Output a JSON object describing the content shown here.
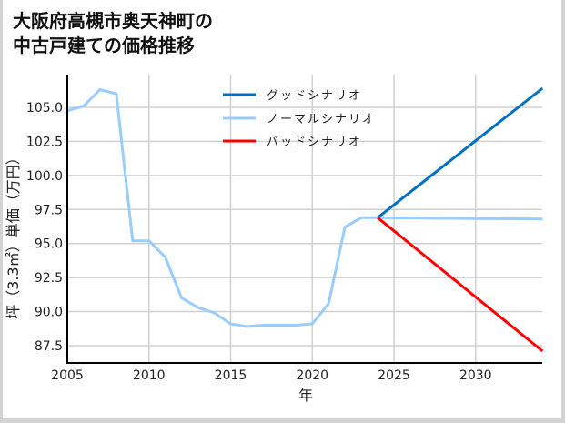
{
  "title": {
    "line1": "大阪府高槻市奥天神町の",
    "line2": "中古戸建ての価格推移"
  },
  "chart_data": {
    "type": "line",
    "title": "大阪府高槻市奥天神町の中古戸建ての価格推移",
    "xlabel": "年",
    "ylabel": "坪（3.3㎡）単価（万円）",
    "xlim": [
      2005,
      2034.1
    ],
    "ylim": [
      86.3,
      107.4
    ],
    "xticks": [
      2005,
      2010,
      2015,
      2020,
      2025,
      2030
    ],
    "xtick_labels": [
      "2005",
      "2010",
      "2015",
      "2020",
      "2025",
      "2030"
    ],
    "yticks": [
      87.5,
      90.0,
      92.5,
      95.0,
      97.5,
      100.0,
      102.5,
      105.0
    ],
    "ytick_labels": [
      "87.5",
      "90.0",
      "92.5",
      "95.0",
      "97.5",
      "100.0",
      "102.5",
      "105.0"
    ],
    "grid": true,
    "legend_position": "upper center",
    "series": [
      {
        "name": "グッドシナリオ",
        "color": "#0070c0",
        "x": [
          2024,
          2034.1
        ],
        "values": [
          96.9,
          106.4
        ]
      },
      {
        "name": "ノーマルシナリオ",
        "color": "#99ccff",
        "x": [
          2005,
          2006,
          2007,
          2008,
          2009,
          2010,
          2011,
          2012,
          2013,
          2014,
          2015,
          2016,
          2017,
          2018,
          2019,
          2020,
          2021,
          2022,
          2023,
          2024,
          2034.1
        ],
        "values": [
          104.75,
          105.1,
          106.3,
          106.0,
          95.2,
          95.2,
          94.0,
          91.0,
          90.3,
          89.9,
          89.1,
          88.9,
          89.0,
          89.0,
          89.0,
          89.1,
          90.6,
          96.2,
          96.9,
          96.9,
          96.8
        ]
      },
      {
        "name": "バッドシナリオ",
        "color": "#ff0000",
        "x": [
          2024,
          2034.1
        ],
        "values": [
          96.9,
          87.1
        ]
      }
    ]
  },
  "legend": {
    "good": "グッドシナリオ",
    "normal": "ノーマルシナリオ",
    "bad": "バッドシナリオ"
  },
  "axes": {
    "xlabel": "年",
    "ylabel": "坪（3.3㎡）単価（万円）"
  }
}
